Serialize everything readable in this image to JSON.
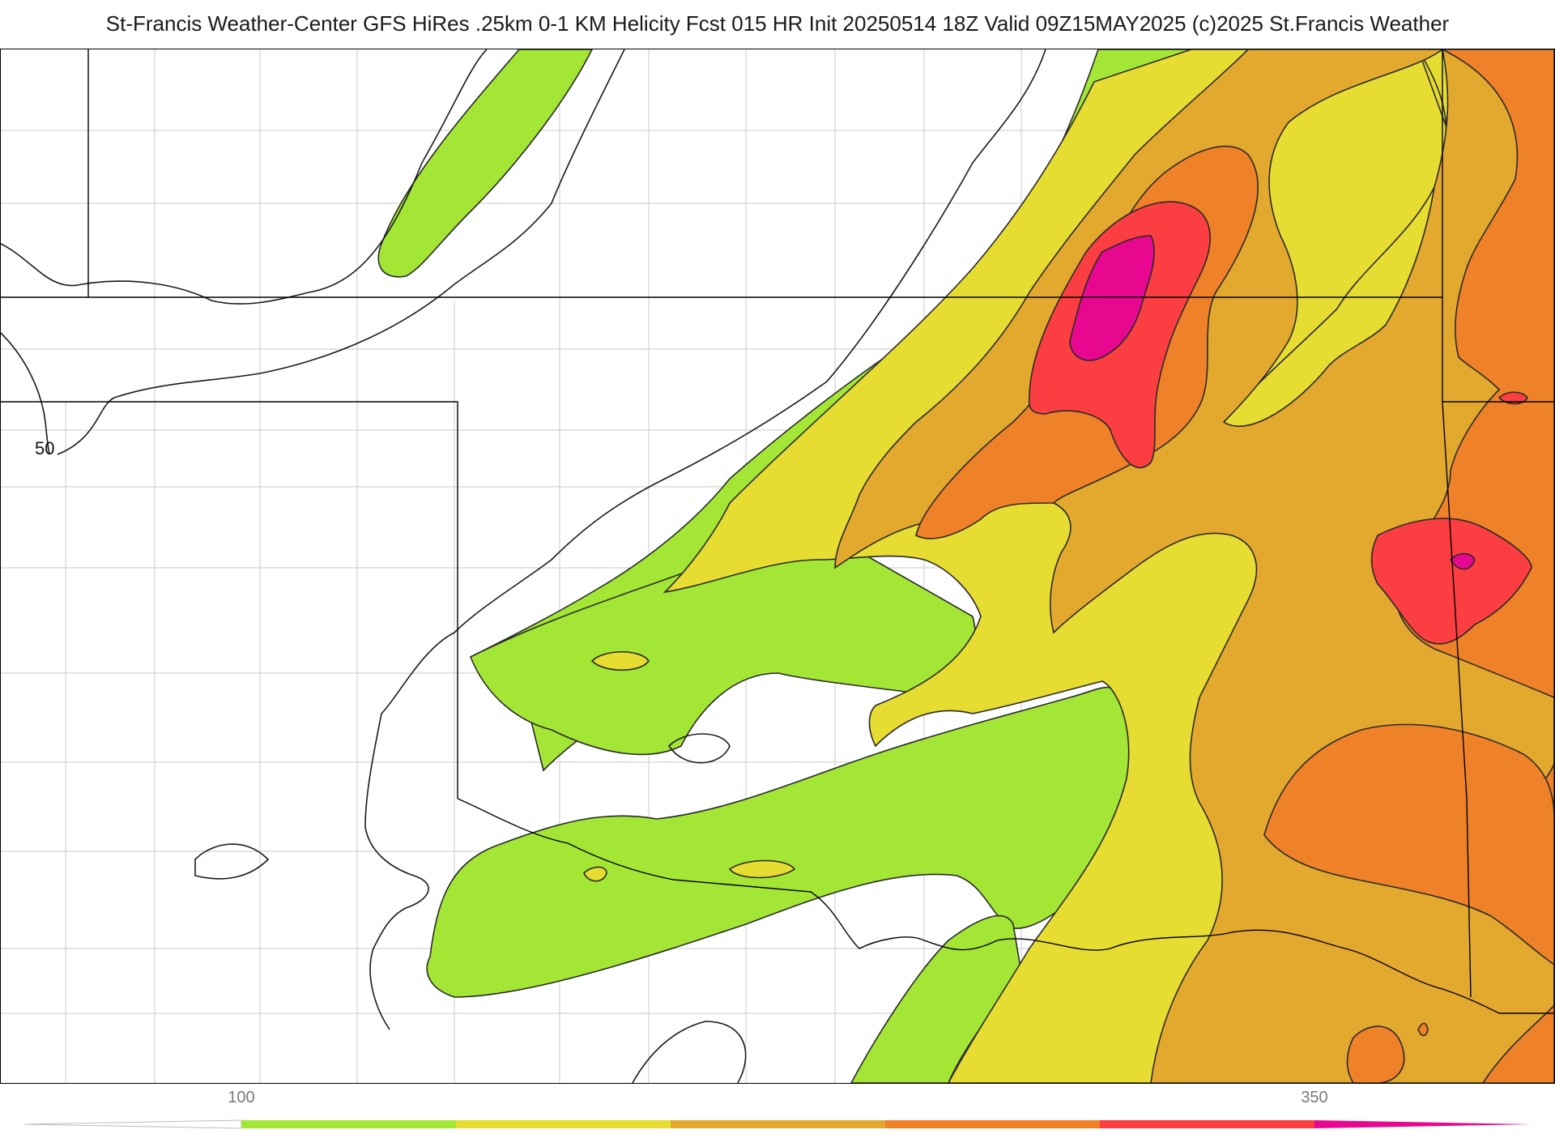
{
  "header": {
    "title": "St-Francis Weather-Center GFS HiRes .25km 0-1 KM Helicity Fcst 015 HR Init 20250514 18Z  Valid 09Z15MAY2025    (c)2025 St.Francis Weather"
  },
  "map": {
    "contour_labels": [
      "50"
    ]
  },
  "colorbar": {
    "tick_labels": [
      "100",
      "350"
    ],
    "colors": [
      "#a3e635",
      "#e6dc32",
      "#e3a92f",
      "#ef8128",
      "#fa3e41",
      "#e8088f"
    ]
  },
  "legend_colors": {
    "green": "#a3e635",
    "yellow": "#e6dc32",
    "gold": "#e3a92f",
    "orange": "#ef8128",
    "red": "#fa3e41",
    "magenta": "#e8088f"
  }
}
